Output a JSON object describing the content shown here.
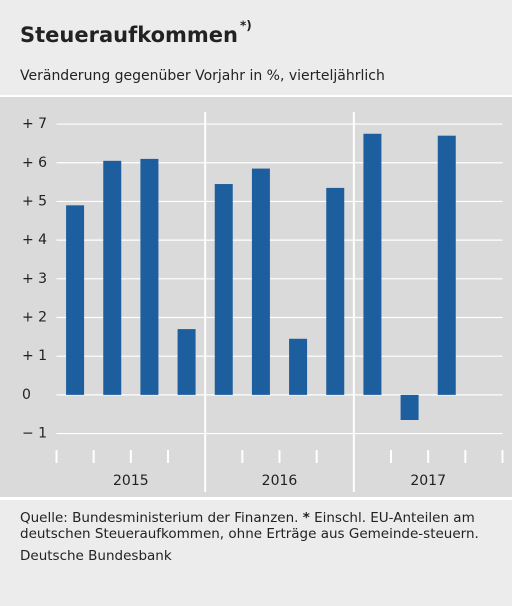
{
  "chart_data": {
    "type": "bar",
    "title": "Steueraufkommen",
    "title_note": "*)",
    "subtitle": "Veränderung gegenüber Vorjahr in %, vierteljährlich",
    "categories": [
      null,
      null,
      null,
      null,
      null,
      null,
      null,
      null,
      null,
      null,
      null,
      null
    ],
    "year_groups": [
      "2015",
      "2016",
      "2017"
    ],
    "values": [
      4.9,
      6.05,
      6.1,
      1.7,
      5.45,
      5.85,
      1.45,
      5.35,
      6.75,
      -0.65,
      6.7,
      null
    ],
    "color": "#1d5e9e",
    "ylim": [
      -1.5,
      7.7
    ],
    "yticks": [
      {
        "value": -1,
        "label": "− 1"
      },
      0,
      {
        "value": 1,
        "label": "+ 1"
      },
      {
        "value": 2,
        "label": "+ 2"
      },
      {
        "value": 3,
        "label": "+ 3"
      },
      {
        "value": 4,
        "label": "+ 4"
      },
      {
        "value": 5,
        "label": "+ 5"
      },
      {
        "value": 6,
        "label": "+ 6"
      },
      {
        "value": 7,
        "label": "+ 7"
      }
    ],
    "grid": true,
    "source": "Quelle: Bundesministerium der Finanzen.",
    "note_marker": "*",
    "note": "Einschl. EU-Anteilen am deutschen Steueraufkommen, ohne Erträge aus Gemeinde-steuern.",
    "publisher": "Deutsche Bundesbank"
  }
}
